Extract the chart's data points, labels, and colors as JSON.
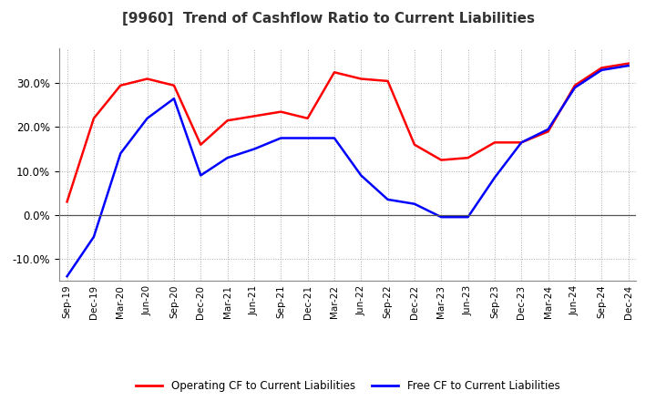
{
  "title": "[9960]  Trend of Cashflow Ratio to Current Liabilities",
  "x_labels": [
    "Sep-19",
    "Dec-19",
    "Mar-20",
    "Jun-20",
    "Sep-20",
    "Dec-20",
    "Mar-21",
    "Jun-21",
    "Sep-21",
    "Dec-21",
    "Mar-22",
    "Jun-22",
    "Sep-22",
    "Dec-22",
    "Mar-23",
    "Jun-23",
    "Sep-23",
    "Dec-23",
    "Mar-24",
    "Jun-24",
    "Sep-24",
    "Dec-24"
  ],
  "operating_cf": [
    3.0,
    22.0,
    29.5,
    31.0,
    29.5,
    16.0,
    21.5,
    22.5,
    23.5,
    22.0,
    32.5,
    31.0,
    30.5,
    16.0,
    12.5,
    13.0,
    16.5,
    16.5,
    19.0,
    29.5,
    33.5,
    34.5
  ],
  "free_cf": [
    -14.0,
    -5.0,
    14.0,
    22.0,
    26.5,
    9.0,
    13.0,
    15.0,
    17.5,
    17.5,
    17.5,
    9.0,
    3.5,
    2.5,
    -0.5,
    -0.5,
    8.5,
    16.5,
    19.5,
    29.0,
    33.0,
    34.0
  ],
  "operating_cf_color": "#FF0000",
  "free_cf_color": "#0000FF",
  "ylim": [
    -15.0,
    38.0
  ],
  "yticks": [
    -10.0,
    0.0,
    10.0,
    20.0,
    30.0
  ],
  "background_color": "#FFFFFF",
  "grid_color": "#AAAAAA",
  "title_fontsize": 11,
  "legend_labels": [
    "Operating CF to Current Liabilities",
    "Free CF to Current Liabilities"
  ]
}
